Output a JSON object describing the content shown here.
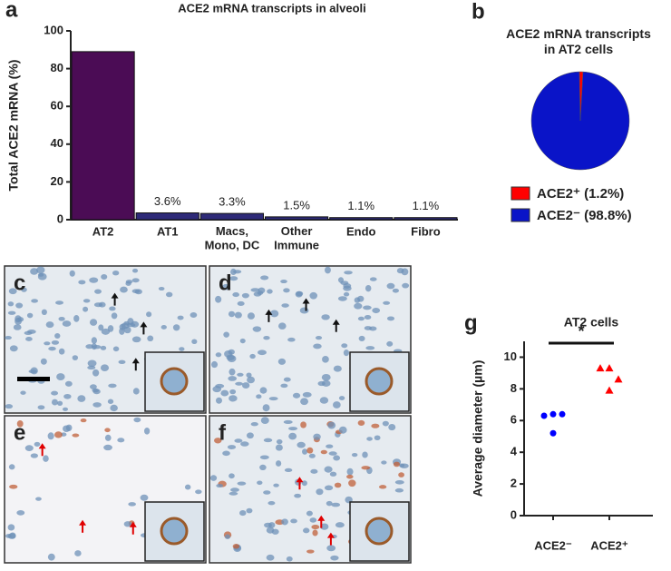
{
  "chart_data": [
    {
      "type": "bar",
      "panel_label": "a",
      "title": "ACE2 mRNA transcripts in alveoli",
      "ylabel": "Total ACE2 mRNA (%)",
      "categories": [
        "AT2",
        "AT1",
        "Macs,\nMono, DC",
        "Other\nImmune",
        "Endo",
        "Fibro"
      ],
      "values": [
        89,
        3.6,
        3.3,
        1.5,
        1.1,
        1.1
      ],
      "value_labels": [
        null,
        "3.6%",
        "3.3%",
        "1.5%",
        "1.1%",
        "1.1%"
      ],
      "colors": [
        "#4b0c55",
        "#2e2a78",
        "#2e2a78",
        "#2e2a78",
        "#2e2a78",
        "#2e2a78"
      ],
      "ylim": [
        0,
        100
      ],
      "yticks": [
        0,
        20,
        40,
        60,
        80,
        100
      ]
    },
    {
      "type": "pie",
      "panel_label": "b",
      "title": "ACE2 mRNA transcripts\nin AT2 cells",
      "labels": [
        "ACE2⁺ (1.2%)",
        "ACE2⁻ (98.8%)"
      ],
      "values": [
        1.2,
        98.8
      ],
      "colors": [
        "#ff0000",
        "#0a14c8"
      ]
    },
    {
      "type": "scatter",
      "panel_label": "g",
      "title": "AT2 cells",
      "ylabel": "Average diameter (µm)",
      "categories": [
        "ACE2⁻",
        "ACE2⁺"
      ],
      "series": [
        {
          "color": "#0000ff",
          "values": [
            6.3,
            6.4,
            6.4,
            5.2
          ]
        },
        {
          "color": "#ff0000",
          "values": [
            9.3,
            9.3,
            8.6,
            7.9
          ]
        }
      ],
      "annotation": "*",
      "ylim": [
        0,
        11
      ],
      "yticks": [
        0,
        2,
        4,
        6,
        8,
        10
      ]
    }
  ],
  "micrographs": [
    {
      "label": "c"
    },
    {
      "label": "d"
    },
    {
      "label": "e"
    },
    {
      "label": "f"
    }
  ]
}
